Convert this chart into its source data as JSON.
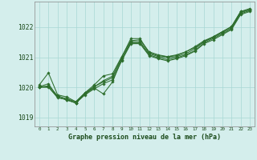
{
  "title": "Graphe pression niveau de la mer (hPa)",
  "xlabel_hours": [
    0,
    1,
    2,
    3,
    4,
    5,
    6,
    7,
    8,
    9,
    10,
    11,
    12,
    13,
    14,
    15,
    16,
    17,
    18,
    19,
    20,
    21,
    22,
    23
  ],
  "ylim": [
    1018.7,
    1022.85
  ],
  "yticks": [
    1019,
    1020,
    1021,
    1022
  ],
  "background_color": "#d4eeec",
  "grid_color": "#a8d8d4",
  "line_color": "#2d6e2d",
  "lines": [
    [
      1020.0,
      1020.05,
      1019.72,
      1019.62,
      1019.52,
      1019.82,
      1020.02,
      1020.22,
      1020.37,
      1021.0,
      1021.62,
      1021.62,
      1021.15,
      1021.05,
      1021.02,
      1021.05,
      1021.18,
      1021.32,
      1021.52,
      1021.68,
      1021.85,
      1022.02,
      1022.52,
      1022.62
    ],
    [
      1020.0,
      1020.0,
      1019.68,
      1019.58,
      1019.48,
      1019.78,
      1019.98,
      1019.78,
      1020.18,
      1020.92,
      1021.52,
      1021.52,
      1021.12,
      1021.02,
      1020.98,
      1021.02,
      1021.12,
      1021.28,
      1021.52,
      1021.65,
      1021.82,
      1021.98,
      1022.48,
      1022.58
    ],
    [
      1020.08,
      1020.48,
      1019.75,
      1019.68,
      1019.52,
      1019.82,
      1020.08,
      1020.38,
      1020.45,
      1021.02,
      1021.55,
      1021.58,
      1021.18,
      1021.08,
      1021.02,
      1021.08,
      1021.18,
      1021.35,
      1021.55,
      1021.68,
      1021.85,
      1022.02,
      1022.52,
      1022.58
    ],
    [
      1020.02,
      1020.12,
      1019.68,
      1019.58,
      1019.48,
      1019.78,
      1020.02,
      1020.18,
      1020.32,
      1020.95,
      1021.48,
      1021.48,
      1021.08,
      1020.98,
      1020.92,
      1020.98,
      1021.08,
      1021.22,
      1021.48,
      1021.62,
      1021.78,
      1021.95,
      1022.45,
      1022.55
    ],
    [
      1020.02,
      1020.02,
      1019.65,
      1019.6,
      1019.48,
      1019.75,
      1019.95,
      1020.12,
      1020.25,
      1020.88,
      1021.45,
      1021.45,
      1021.05,
      1020.95,
      1020.88,
      1020.95,
      1021.05,
      1021.2,
      1021.45,
      1021.58,
      1021.75,
      1021.92,
      1022.42,
      1022.52
    ]
  ]
}
